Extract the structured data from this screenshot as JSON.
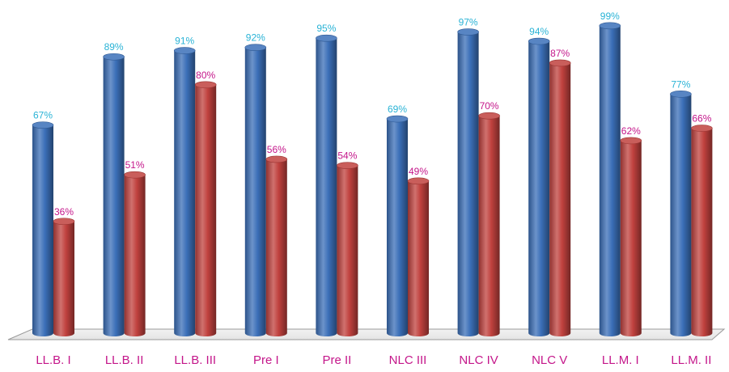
{
  "chart_data": {
    "type": "bar",
    "categories": [
      "LL.B. I",
      "LL.B. II",
      "LL.B. III",
      "Pre I",
      "Pre II",
      "NLC III",
      "NLC IV",
      "NLC V",
      "LL.M. I",
      "LL.M. II"
    ],
    "series": [
      {
        "values": [
          67,
          89,
          91,
          92,
          95,
          69,
          97,
          94,
          99,
          77
        ],
        "labels": [
          "67%",
          "89%",
          "91%",
          "92%",
          "95%",
          "69%",
          "97%",
          "94%",
          "99%",
          "77%"
        ],
        "color": "#3b6fb8",
        "label_color": "#2ab3d6"
      },
      {
        "values": [
          36,
          51,
          80,
          56,
          54,
          49,
          70,
          87,
          62,
          66
        ],
        "labels": [
          "36%",
          "51%",
          "80%",
          "56%",
          "54%",
          "49%",
          "70%",
          "87%",
          "62%",
          "66%"
        ],
        "color": "#c0413e",
        "label_color": "#c4168a"
      }
    ],
    "category_label_color": "#c4168a",
    "floor_color": "#e4e4e4",
    "title": "",
    "xlabel": "",
    "ylabel": "",
    "ylim": [
      0,
      100
    ],
    "grid": false,
    "style": "3d-cylinder"
  }
}
